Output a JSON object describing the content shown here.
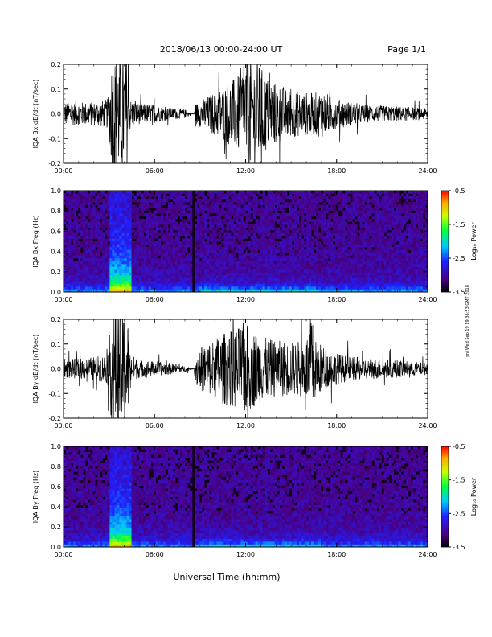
{
  "header": {
    "date_range": "2018/06/13  00:00-24:00 UT",
    "page": "Page 1/1"
  },
  "footer": {
    "xlabel": "Universal Time (hh:mm)",
    "timestamp": "sni Wed Sep 19 19:36:53 GMT 2018"
  },
  "chart_data": [
    {
      "type": "line",
      "ylabel": "IQA Bx dB/dt (nT/sec)",
      "xlim": [
        0,
        24
      ],
      "ylim": [
        -0.2,
        0.2
      ],
      "x_ticks": [
        "00:00",
        "06:00",
        "12:00",
        "18:00",
        "24:00"
      ],
      "y_ticks": [
        "-0.2",
        "-0.1",
        "0.0",
        "0.1",
        "0.2"
      ],
      "color": "#000000",
      "envelope": {
        "x": [
          0,
          1,
          2,
          2.9,
          3.2,
          3.5,
          4.2,
          4.4,
          5,
          6,
          7,
          8,
          8.6,
          8.7,
          9.5,
          10.5,
          11.5,
          12,
          12.5,
          13.5,
          15,
          16.5,
          17,
          18,
          19,
          20,
          22,
          24
        ],
        "amp": [
          0.04,
          0.04,
          0.04,
          0.05,
          0.2,
          0.2,
          0.2,
          0.05,
          0.035,
          0.03,
          0.02,
          0.015,
          0.0,
          0.035,
          0.06,
          0.09,
          0.13,
          0.2,
          0.2,
          0.12,
          0.08,
          0.07,
          0.08,
          0.05,
          0.04,
          0.03,
          0.025,
          0.02
        ]
      }
    },
    {
      "type": "heatmap",
      "ylabel": "IQA Bx Freq (Hz)",
      "xlim": [
        0,
        24
      ],
      "ylim": [
        0,
        1
      ],
      "x_ticks": [
        "00:00",
        "06:00",
        "12:00",
        "18:00",
        "24:00"
      ],
      "y_ticks": [
        "0.0",
        "0.2",
        "0.4",
        "0.6",
        "0.8",
        "1.0"
      ],
      "colorbar": {
        "label": "Log₁₀ Power",
        "range": [
          -3.5,
          -0.5
        ],
        "ticks": [
          "-0.5",
          "-1.5",
          "-2.5",
          "-3.5"
        ]
      },
      "events": [
        {
          "start": 3.0,
          "end": 4.4,
          "level": 0.9
        },
        {
          "start": 8.5,
          "end": 8.7,
          "level": -1
        }
      ]
    },
    {
      "type": "line",
      "ylabel": "IQA By dB/dt (nT/sec)",
      "xlim": [
        0,
        24
      ],
      "ylim": [
        -0.2,
        0.2
      ],
      "x_ticks": [
        "00:00",
        "06:00",
        "12:00",
        "18:00",
        "24:00"
      ],
      "y_ticks": [
        "-0.2",
        "-0.1",
        "0.0",
        "0.1",
        "0.2"
      ],
      "color": "#000000",
      "envelope": {
        "x": [
          0,
          1,
          2,
          2.9,
          3.2,
          3.5,
          4.2,
          4.4,
          5,
          6,
          7,
          8,
          8.6,
          8.7,
          9.5,
          10.5,
          11.5,
          12,
          12.5,
          13.5,
          15,
          16,
          16.3,
          16.6,
          17.5,
          19,
          22,
          24
        ],
        "amp": [
          0.03,
          0.035,
          0.04,
          0.05,
          0.2,
          0.2,
          0.2,
          0.05,
          0.03,
          0.025,
          0.02,
          0.01,
          0.0,
          0.06,
          0.09,
          0.12,
          0.14,
          0.16,
          0.13,
          0.1,
          0.09,
          0.1,
          0.2,
          0.1,
          0.06,
          0.04,
          0.03,
          0.02
        ]
      }
    },
    {
      "type": "heatmap",
      "ylabel": "IQA By Freq (Hz)",
      "xlim": [
        0,
        24
      ],
      "ylim": [
        0,
        1
      ],
      "x_ticks": [
        "00:00",
        "06:00",
        "12:00",
        "18:00",
        "24:00"
      ],
      "y_ticks": [
        "0.0",
        "0.2",
        "0.4",
        "0.6",
        "0.8",
        "1.0"
      ],
      "colorbar": {
        "label": "Log₁₀ Power",
        "range": [
          -3.5,
          -0.5
        ],
        "ticks": [
          "-0.5",
          "-1.5",
          "-2.5",
          "-3.5"
        ]
      },
      "events": [
        {
          "start": 3.0,
          "end": 4.4,
          "level": 0.9
        },
        {
          "start": 8.5,
          "end": 8.7,
          "level": -1
        }
      ]
    }
  ]
}
